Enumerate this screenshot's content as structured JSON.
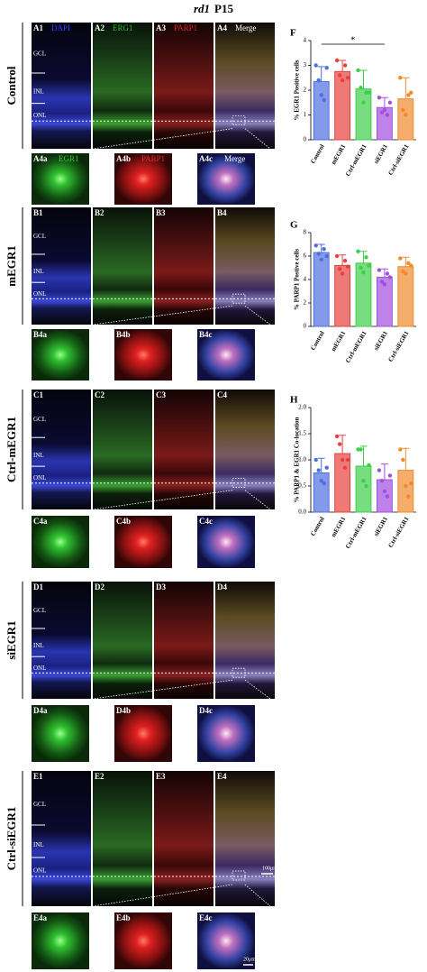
{
  "header": {
    "strain": "rd1",
    "age": "P15"
  },
  "layers": [
    "GCL",
    "INL",
    "ONL"
  ],
  "scale_bars": [
    "100μm",
    "20μm"
  ],
  "groups": [
    {
      "label": "Control",
      "panels": [
        {
          "id": "A1",
          "stain": "DAPI"
        },
        {
          "id": "A2",
          "stain": "ERG1"
        },
        {
          "id": "A3",
          "stain": "PARP1"
        },
        {
          "id": "A4",
          "stain": "Merge"
        }
      ],
      "zooms": [
        {
          "id": "A4a",
          "stain": "EGR1"
        },
        {
          "id": "A4b",
          "stain": "PARP1"
        },
        {
          "id": "A4c",
          "stain": "Merge"
        }
      ]
    },
    {
      "label": "mEGR1",
      "panels": [
        {
          "id": "B1"
        },
        {
          "id": "B2"
        },
        {
          "id": "B3"
        },
        {
          "id": "B4"
        }
      ],
      "zooms": [
        {
          "id": "B4a"
        },
        {
          "id": "B4b"
        },
        {
          "id": "B4c"
        }
      ]
    },
    {
      "label": "Ctrl-mEGR1",
      "panels": [
        {
          "id": "C1"
        },
        {
          "id": "C2"
        },
        {
          "id": "C3"
        },
        {
          "id": "C4"
        }
      ],
      "zooms": [
        {
          "id": "C4a"
        },
        {
          "id": "C4b"
        },
        {
          "id": "C4c"
        }
      ]
    },
    {
      "label": "siEGR1",
      "panels": [
        {
          "id": "D1"
        },
        {
          "id": "D2"
        },
        {
          "id": "D3"
        },
        {
          "id": "D4"
        }
      ],
      "zooms": [
        {
          "id": "D4a"
        },
        {
          "id": "D4b"
        },
        {
          "id": "D4c"
        }
      ]
    },
    {
      "label": "Ctrl-siEGR1",
      "panels": [
        {
          "id": "E1"
        },
        {
          "id": "E2"
        },
        {
          "id": "E3"
        },
        {
          "id": "E4"
        }
      ],
      "zooms": [
        {
          "id": "E4a"
        },
        {
          "id": "E4b"
        },
        {
          "id": "E4c"
        }
      ]
    }
  ],
  "chart_data": [
    {
      "type": "bar",
      "panel": "F",
      "ylabel": "% EGR1 Positive cells",
      "categories": [
        "Control",
        "mEGR1",
        "Ctrl-mEGR1",
        "siEGR1",
        "Ctrl-siEGR1"
      ],
      "colors": [
        "#4f6fe0",
        "#e8403c",
        "#3ecf4a",
        "#a24fe0",
        "#f08a2c"
      ],
      "values": [
        2.35,
        2.75,
        2.05,
        1.3,
        1.65
      ],
      "errors": [
        0.6,
        0.45,
        0.75,
        0.4,
        0.85
      ],
      "points": [
        [
          3.0,
          2.4,
          1.8,
          1.6,
          2.9
        ],
        [
          3.2,
          2.6,
          2.4,
          3.0,
          2.5
        ],
        [
          2.8,
          2.1,
          1.5,
          1.9,
          1.9
        ],
        [
          1.7,
          1.1,
          1.2,
          1.0,
          1.5
        ],
        [
          2.5,
          1.2,
          1.0,
          1.8,
          1.9
        ]
      ],
      "significance": {
        "label": "*",
        "categories": [
          "Control",
          "siEGR1"
        ]
      },
      "ylim": [
        0,
        4
      ],
      "yticks": [
        0,
        1,
        2,
        3,
        4
      ]
    },
    {
      "type": "bar",
      "panel": "G",
      "ylabel": "% PARP1 Postive cells",
      "categories": [
        "Control",
        "mEGR1",
        "Ctrl-mEGR1",
        "siEGR1",
        "Ctrl-siEGR1"
      ],
      "colors": [
        "#4f6fe0",
        "#e8403c",
        "#3ecf4a",
        "#a24fe0",
        "#f08a2c"
      ],
      "values": [
        6.3,
        5.2,
        5.4,
        4.2,
        5.1
      ],
      "errors": [
        0.7,
        0.9,
        1.0,
        0.7,
        0.8
      ],
      "points": [
        [
          6.9,
          6.2,
          5.7,
          6.6,
          6.0
        ],
        [
          6.0,
          4.9,
          4.5,
          5.6,
          5.1
        ],
        [
          6.4,
          5.0,
          4.6,
          5.9,
          5.2
        ],
        [
          4.8,
          3.8,
          3.6,
          4.5,
          4.2
        ],
        [
          5.8,
          4.7,
          4.5,
          5.4,
          5.2
        ]
      ],
      "ylim": [
        0,
        8
      ],
      "yticks": [
        0,
        2,
        4,
        6,
        8
      ]
    },
    {
      "type": "bar",
      "panel": "H",
      "ylabel": "% PARP1 & EGR1 Co-location",
      "categories": [
        "Control",
        "mEGR1",
        "Ctrl-mEGR1",
        "siEGR1",
        "Ctrl-siEGR1"
      ],
      "colors": [
        "#4f6fe0",
        "#e8403c",
        "#3ecf4a",
        "#a24fe0",
        "#f08a2c"
      ],
      "values": [
        0.75,
        1.12,
        0.88,
        0.62,
        0.8
      ],
      "errors": [
        0.28,
        0.35,
        0.38,
        0.3,
        0.42
      ],
      "points": [
        [
          1.0,
          0.8,
          0.6,
          0.55,
          0.85
        ],
        [
          1.45,
          1.3,
          1.0,
          0.85,
          1.0
        ],
        [
          1.2,
          1.2,
          0.6,
          0.5,
          0.9
        ],
        [
          0.8,
          0.6,
          0.4,
          0.3,
          0.7
        ],
        [
          1.2,
          1.0,
          0.5,
          0.3,
          0.55
        ]
      ],
      "ylim": [
        0,
        2.0
      ],
      "yticks": [
        {
          "value": 0,
          "label": "0.0"
        },
        0.5,
        {
          "value": 1,
          "label": "1.0"
        },
        1.5,
        {
          "value": 2,
          "label": "2.0"
        }
      ]
    }
  ]
}
